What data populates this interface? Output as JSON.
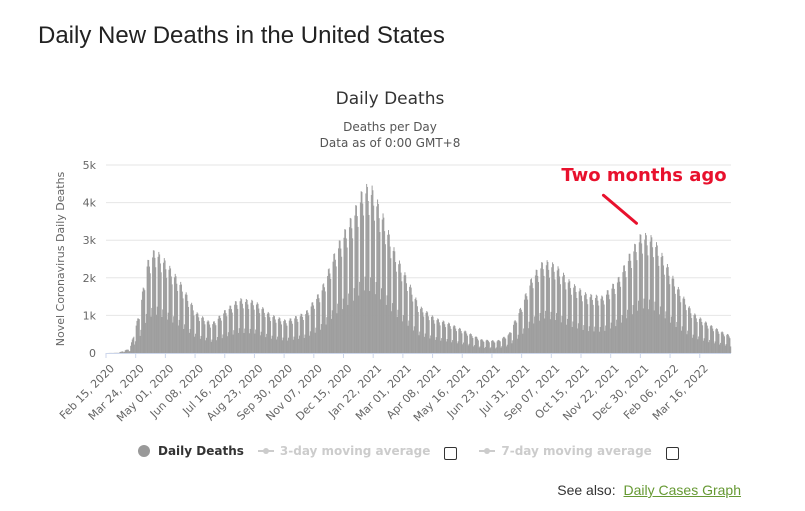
{
  "page": {
    "title": "Daily New Deaths in the United States"
  },
  "legend": {
    "items": [
      {
        "label": "Daily Deaths"
      },
      {
        "label": "3-day moving average"
      },
      {
        "label": "7-day moving average"
      }
    ]
  },
  "footer": {
    "see_also": "See also:",
    "link": "Daily Cases Graph"
  },
  "colors": {
    "bars": "#9e9e9e",
    "annotation": "#e8112d",
    "grid": "#e6e6e6",
    "link": "#669933"
  },
  "chart_data": {
    "type": "bar",
    "title": "Daily Deaths",
    "subtitle_lines": [
      "Deaths per Day",
      "Data as of 0:00 GMT+8"
    ],
    "xlabel": "",
    "ylabel": "Novel Coronavirus Daily Deaths",
    "ylim": [
      0,
      5000
    ],
    "y_ticks": [
      {
        "value": 0,
        "label": "0"
      },
      {
        "value": 1000,
        "label": "1k"
      },
      {
        "value": 2000,
        "label": "2k"
      },
      {
        "value": 3000,
        "label": "3k"
      },
      {
        "value": 4000,
        "label": "4k"
      },
      {
        "value": 5000,
        "label": "5k"
      }
    ],
    "x_tick_labels": [
      "Feb 15, 2020",
      "Mar 24, 2020",
      "May 01, 2020",
      "Jun 08, 2020",
      "Jul 16, 2020",
      "Aug 23, 2020",
      "Sep 30, 2020",
      "Nov 07, 2020",
      "Dec 15, 2020",
      "Jan 22, 2021",
      "Mar 01, 2021",
      "Apr 08, 2021",
      "May 16, 2021",
      "Jun 23, 2021",
      "Jul 31, 2021",
      "Sep 07, 2021",
      "Oct 15, 2021",
      "Nov 22, 2021",
      "Dec 30, 2021",
      "Feb 06, 2022",
      "Mar 16, 2022"
    ],
    "start_date": "Feb 15, 2020",
    "days_per_tick": 38,
    "num_days": 800,
    "weekly_pattern": [
      1.0,
      0.45,
      0.55,
      1.15,
      1.22,
      1.2,
      1.1
    ],
    "envelope": [
      {
        "day": 0,
        "value": 0
      },
      {
        "day": 15,
        "value": 5
      },
      {
        "day": 30,
        "value": 100
      },
      {
        "day": 42,
        "value": 900
      },
      {
        "day": 52,
        "value": 2000
      },
      {
        "day": 62,
        "value": 2300
      },
      {
        "day": 75,
        "value": 2050
      },
      {
        "day": 95,
        "value": 1550
      },
      {
        "day": 115,
        "value": 900
      },
      {
        "day": 135,
        "value": 650
      },
      {
        "day": 152,
        "value": 950
      },
      {
        "day": 170,
        "value": 1200
      },
      {
        "day": 190,
        "value": 1150
      },
      {
        "day": 210,
        "value": 850
      },
      {
        "day": 230,
        "value": 720
      },
      {
        "day": 255,
        "value": 900
      },
      {
        "day": 275,
        "value": 1400
      },
      {
        "day": 295,
        "value": 2350
      },
      {
        "day": 315,
        "value": 3050
      },
      {
        "day": 330,
        "value": 3700
      },
      {
        "day": 340,
        "value": 3650
      },
      {
        "day": 355,
        "value": 3000
      },
      {
        "day": 370,
        "value": 2200
      },
      {
        "day": 385,
        "value": 1650
      },
      {
        "day": 400,
        "value": 1050
      },
      {
        "day": 420,
        "value": 780
      },
      {
        "day": 440,
        "value": 650
      },
      {
        "day": 460,
        "value": 480
      },
      {
        "day": 480,
        "value": 300
      },
      {
        "day": 500,
        "value": 270
      },
      {
        "day": 515,
        "value": 420
      },
      {
        "day": 530,
        "value": 1000
      },
      {
        "day": 545,
        "value": 1700
      },
      {
        "day": 560,
        "value": 2050
      },
      {
        "day": 575,
        "value": 1950
      },
      {
        "day": 595,
        "value": 1550
      },
      {
        "day": 615,
        "value": 1300
      },
      {
        "day": 635,
        "value": 1250
      },
      {
        "day": 655,
        "value": 1650
      },
      {
        "day": 670,
        "value": 2200
      },
      {
        "day": 685,
        "value": 2650
      },
      {
        "day": 700,
        "value": 2550
      },
      {
        "day": 715,
        "value": 2050
      },
      {
        "day": 730,
        "value": 1500
      },
      {
        "day": 750,
        "value": 900
      },
      {
        "day": 770,
        "value": 650
      },
      {
        "day": 790,
        "value": 450
      },
      {
        "day": 800,
        "value": 380
      }
    ],
    "annotation": {
      "text": "Two months ago",
      "target_day": 679,
      "target_value": 3450
    }
  }
}
